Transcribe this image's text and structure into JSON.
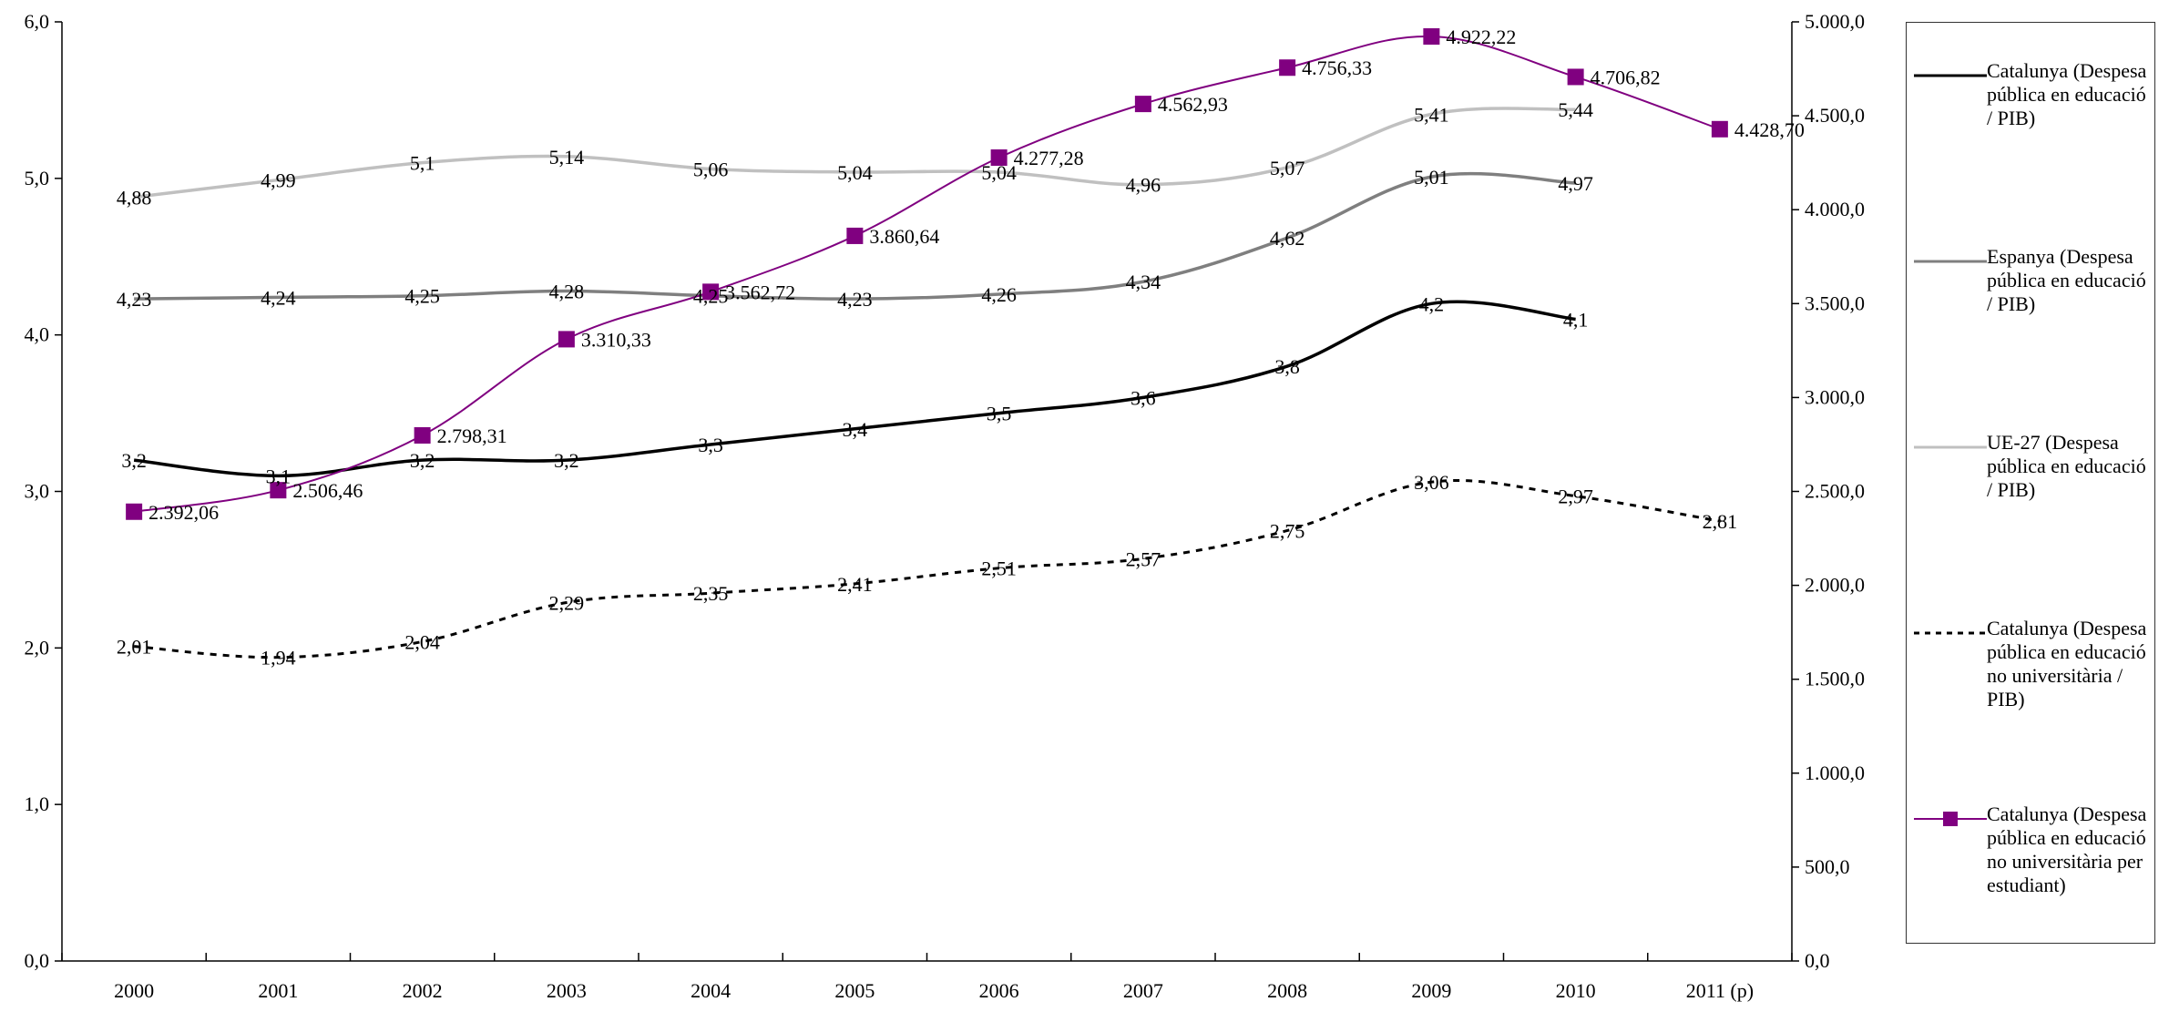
{
  "chart_data": {
    "type": "line",
    "categories": [
      "2000",
      "2001",
      "2002",
      "2003",
      "2004",
      "2005",
      "2006",
      "2007",
      "2008",
      "2009",
      "2010",
      "2011 (p)"
    ],
    "y_left": {
      "ylim": [
        0,
        6
      ],
      "ticks": [
        "0,0",
        "1,0",
        "2,0",
        "3,0",
        "4,0",
        "5,0",
        "6,0"
      ]
    },
    "y_right": {
      "ylim": [
        0,
        5000
      ],
      "ticks": [
        "0,0",
        "500,0",
        "1.000,0",
        "1.500,0",
        "2.000,0",
        "2.500,0",
        "3.000,0",
        "3.500,0",
        "4.000,0",
        "4.500,0",
        "5.000,0"
      ]
    },
    "grid": false,
    "legend_position": "right",
    "series": [
      {
        "name": "Catalunya (Despesa pública en educació / PIB)",
        "axis": "left",
        "color": "#000000",
        "style": "solid",
        "values": [
          3.2,
          3.1,
          3.2,
          3.2,
          3.3,
          3.4,
          3.5,
          3.6,
          3.8,
          4.2,
          4.1,
          null
        ],
        "labels": [
          "3,2",
          "3,1",
          "3,2",
          "3,2",
          "3,3",
          "3,4",
          "3,5",
          "3,6",
          "3,8",
          "4,2",
          "4,1",
          ""
        ]
      },
      {
        "name": "Espanya (Despesa pública en educació / PIB)",
        "axis": "left",
        "color": "#7f7f7f",
        "style": "solid",
        "values": [
          4.23,
          4.24,
          4.25,
          4.28,
          4.25,
          4.23,
          4.26,
          4.34,
          4.62,
          5.01,
          4.97,
          null
        ],
        "labels": [
          "4,23",
          "4,24",
          "4,25",
          "4,28",
          "4,25",
          "4,23",
          "4,26",
          "4,34",
          "4,62",
          "5,01",
          "4,97",
          ""
        ]
      },
      {
        "name": "UE-27 (Despesa pública en educació / PIB)",
        "axis": "left",
        "color": "#c0c0c0",
        "style": "solid",
        "values": [
          4.88,
          4.99,
          5.1,
          5.14,
          5.06,
          5.04,
          5.04,
          4.96,
          5.07,
          5.41,
          5.44,
          null
        ],
        "labels": [
          "4,88",
          "4,99",
          "5,1",
          "5,14",
          "5,06",
          "5,04",
          "5,04",
          "4,96",
          "5,07",
          "5,41",
          "5,44",
          ""
        ]
      },
      {
        "name": "Catalunya (Despesa pública en educació no universitària / PIB)",
        "axis": "left",
        "color": "#000000",
        "style": "dashed",
        "values": [
          2.01,
          1.94,
          2.04,
          2.29,
          2.35,
          2.41,
          2.51,
          2.57,
          2.75,
          3.06,
          2.97,
          2.81
        ],
        "labels": [
          "2,01",
          "1,94",
          "2,04",
          "2,29",
          "2,35",
          "2,41",
          "2,51",
          "2,57",
          "2,75",
          "3,06",
          "2,97",
          "2,81"
        ]
      },
      {
        "name": "Catalunya (Despesa pública en educació no universitària per estudiant)",
        "axis": "right",
        "color": "#800080",
        "style": "solid-marker",
        "values": [
          2392.06,
          2506.46,
          2798.31,
          3310.33,
          3562.72,
          3860.64,
          4277.28,
          4562.93,
          4756.33,
          4922.22,
          4706.82,
          4428.7
        ],
        "labels": [
          "2.392,06",
          "2.506,46",
          "2.798,31",
          "3.310,33",
          "3.562,72",
          "3.860,64",
          "4.277,28",
          "4.562,93",
          "4.756,33",
          "4.922,22",
          "4.706,82",
          "4.428,70"
        ]
      }
    ]
  },
  "legend": {
    "items": [
      {
        "text": "Catalunya (Despesa pública en educació / PIB)"
      },
      {
        "text": "Espanya (Despesa pública en educació / PIB)"
      },
      {
        "text": "UE-27 (Despesa pública en educació / PIB)"
      },
      {
        "text": "Catalunya (Despesa pública en educació no universitària / PIB)"
      },
      {
        "text": "Catalunya (Despesa pública en educació no universitària per estudiant)"
      }
    ]
  }
}
